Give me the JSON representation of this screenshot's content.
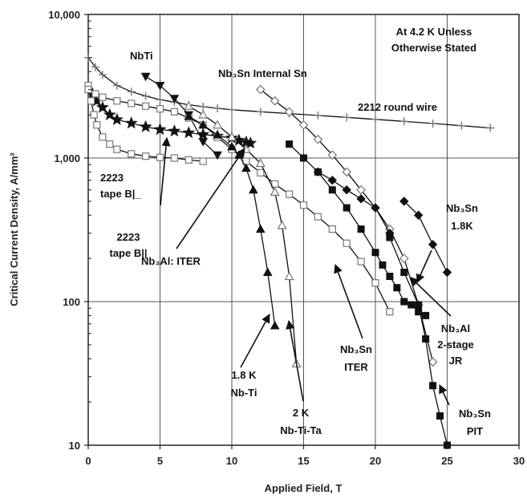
{
  "chart_data": {
    "type": "scatter",
    "xlabel": "Applied Field, T",
    "ylabel": "Critical Current Density, A/mm²",
    "xlim": [
      0,
      30
    ],
    "ylim": [
      10,
      10000
    ],
    "y_scale": "log",
    "x_ticks": [
      "0",
      "5",
      "10",
      "15",
      "20",
      "25",
      "30"
    ],
    "y_ticks": [
      "10",
      "100",
      "1,000",
      "10,000"
    ],
    "grid": true,
    "series": [
      {
        "name": "2212 round wire",
        "marker": "plus",
        "color": "#777777",
        "x": [
          0,
          0.5,
          1,
          2,
          3,
          4,
          5,
          6,
          7,
          8,
          9,
          10,
          12,
          14,
          16,
          18,
          20,
          22,
          24,
          26,
          28
        ],
        "y": [
          5000,
          4300,
          3800,
          3200,
          2900,
          2700,
          2550,
          2450,
          2350,
          2280,
          2220,
          2170,
          2100,
          2040,
          1980,
          1920,
          1860,
          1800,
          1740,
          1680,
          1620
        ]
      },
      {
        "name": "NbTi",
        "marker": "triangle-down-filled",
        "color": "#111111",
        "x": [
          4,
          5,
          6,
          7,
          8,
          9
        ],
        "y": [
          3700,
          3200,
          2600,
          2000,
          1300,
          1050
        ]
      },
      {
        "name": "2223 tape B||",
        "marker": "star-filled",
        "color": "#111111",
        "x": [
          0.3,
          0.6,
          1,
          1.5,
          2,
          3,
          4,
          5,
          6,
          7,
          8,
          9,
          10,
          10.5,
          11,
          11.3
        ],
        "y": [
          2800,
          2500,
          2250,
          2000,
          1850,
          1750,
          1650,
          1580,
          1540,
          1500,
          1460,
          1420,
          1380,
          1330,
          1290,
          1270
        ]
      },
      {
        "name": "2223 tape B|_",
        "marker": "square-open",
        "color": "#777777",
        "x": [
          0,
          0.2,
          0.4,
          0.6,
          1,
          1.5,
          2,
          3,
          4,
          5,
          6,
          7,
          8
        ],
        "y": [
          3200,
          2500,
          2000,
          1700,
          1400,
          1250,
          1150,
          1070,
          1030,
          1010,
          1000,
          970,
          950
        ]
      },
      {
        "name": "Nb3Al: ITER",
        "marker": "square-open",
        "color": "#777777",
        "x": [
          0,
          0.5,
          1,
          2,
          3,
          4,
          5,
          6,
          7,
          8,
          9,
          10,
          11,
          12,
          13,
          14,
          15,
          16,
          17,
          18,
          19,
          20,
          21
        ],
        "y": [
          3000,
          2800,
          2650,
          2500,
          2400,
          2300,
          2200,
          2100,
          1900,
          1700,
          1400,
          1150,
          950,
          790,
          660,
          560,
          470,
          390,
          320,
          255,
          190,
          135,
          85
        ]
      },
      {
        "name": "1.8 K Nb-Ti",
        "marker": "triangle-filled",
        "color": "#111111",
        "x": [
          7,
          8,
          9,
          10,
          10.5,
          11,
          11.5,
          12,
          12.5,
          13
        ],
        "y": [
          1950,
          1700,
          1450,
          1200,
          1050,
          850,
          600,
          320,
          160,
          68
        ]
      },
      {
        "name": "2 K Nb-Ti-Ta",
        "marker": "triangle-open",
        "color": "#777777",
        "x": [
          7,
          8,
          9,
          10,
          11,
          12,
          13,
          13.5,
          14,
          14.5
        ],
        "y": [
          2300,
          2000,
          1700,
          1400,
          1150,
          920,
          580,
          340,
          150,
          37
        ]
      },
      {
        "name": "Nb3Sn Internal Sn",
        "marker": "diamond-open",
        "color": "#777777",
        "x": [
          12,
          13,
          14,
          15,
          16,
          17,
          18,
          19,
          20,
          21,
          22,
          23,
          24
        ],
        "y": [
          3000,
          2500,
          2100,
          1700,
          1350,
          1050,
          800,
          600,
          450,
          320,
          200,
          95,
          38
        ]
      },
      {
        "name": "Nb3Al 2-stage JR",
        "marker": "square-filled",
        "color": "#111111",
        "x": [
          14,
          15,
          16,
          17,
          18,
          19,
          20,
          20.5,
          21,
          21.5,
          22,
          22.5,
          23,
          23.5
        ],
        "y": [
          1250,
          1000,
          800,
          600,
          450,
          320,
          220,
          180,
          150,
          125,
          100,
          95,
          85,
          80
        ]
      },
      {
        "name": "Nb3Sn ITER",
        "marker": "diamond-filled",
        "color": "#111111",
        "x": [
          16,
          17,
          18,
          19,
          20,
          21
        ],
        "y": [
          800,
          700,
          600,
          520,
          450,
          300
        ]
      },
      {
        "name": "Nb3Sn 1.8K",
        "marker": "diamond-filled",
        "color": "#111111",
        "x": [
          22,
          23,
          24,
          25
        ],
        "y": [
          500,
          400,
          250,
          160
        ]
      },
      {
        "name": "Nb3Sn PIT",
        "marker": "square-filled",
        "color": "#111111",
        "x": [
          21,
          22,
          23,
          23.5,
          24,
          24.5,
          25
        ],
        "y": [
          280,
          160,
          95,
          55,
          26,
          16,
          10
        ]
      }
    ],
    "annotations": [
      {
        "id": "a1",
        "lines": [
          "At 4.2 K Unless",
          "Otherwise Stated"
        ]
      },
      {
        "id": "a2",
        "lines": [
          "NbTi"
        ]
      },
      {
        "id": "a3",
        "lines": [
          "Nb₃Sn Internal Sn"
        ]
      },
      {
        "id": "a4",
        "lines": [
          "2212 round wire"
        ]
      },
      {
        "id": "a5",
        "lines": [
          "2223",
          "tape B|_"
        ]
      },
      {
        "id": "a6",
        "lines": [
          "2223",
          "tape B||"
        ]
      },
      {
        "id": "a7",
        "lines": [
          "Nb₃Al: ITER"
        ]
      },
      {
        "id": "a8",
        "lines": [
          "Nb₃Sn",
          "1.8K"
        ]
      },
      {
        "id": "a9",
        "lines": [
          "Nb₃Al",
          "2-stage",
          "JR"
        ]
      },
      {
        "id": "a10",
        "lines": [
          "Nb₃Sn",
          "ITER"
        ]
      },
      {
        "id": "a11",
        "lines": [
          "1.8 K",
          "Nb-Ti"
        ]
      },
      {
        "id": "a12",
        "lines": [
          "2 K",
          "Nb-Ti-Ta"
        ]
      },
      {
        "id": "a13",
        "lines": [
          "Nb₃Sn",
          "PIT"
        ]
      }
    ]
  }
}
